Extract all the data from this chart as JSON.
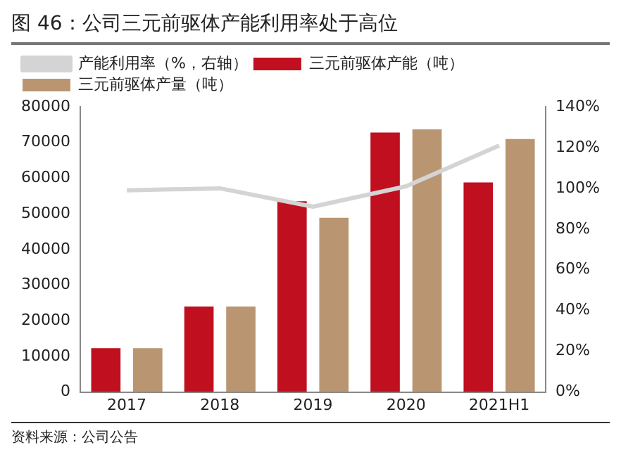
{
  "chart_data": {
    "type": "bar",
    "title": "图 46：公司三元前驱体产能利用率处于高位",
    "categories": [
      "2017",
      "2018",
      "2019",
      "2020",
      "2021H1"
    ],
    "series": [
      {
        "name": "三元前驱体产能（吨）",
        "color": "#c00f1e",
        "values": [
          12300,
          24000,
          53500,
          72800,
          58800
        ]
      },
      {
        "name": "三元前驱体产量（吨）",
        "color": "#b99671",
        "values": [
          12300,
          24000,
          48900,
          73700,
          71000
        ]
      },
      {
        "name": "产能利用率（%，右轴）",
        "type": "line",
        "axis": "y2",
        "color": "#d4d4d4",
        "marker": "none",
        "values": [
          99,
          100,
          91,
          101,
          121
        ]
      }
    ],
    "ylim": [
      0,
      80000
    ],
    "yticks": [
      0,
      10000,
      20000,
      30000,
      40000,
      50000,
      60000,
      70000,
      80000
    ],
    "y2lim": [
      0,
      140
    ],
    "y2ticks": [
      {
        "value": 0,
        "label": "0%"
      },
      {
        "value": 20,
        "label": "20%"
      },
      {
        "value": 40,
        "label": "40%"
      },
      {
        "value": 60,
        "label": "60%"
      },
      {
        "value": 80,
        "label": "80%"
      },
      {
        "value": 100,
        "label": "100%"
      },
      {
        "value": 120,
        "label": "120%"
      },
      {
        "value": 140,
        "label": "140%"
      }
    ],
    "grid": false,
    "legend": "top",
    "annotations": [
      "资料来源：公司公告"
    ]
  }
}
